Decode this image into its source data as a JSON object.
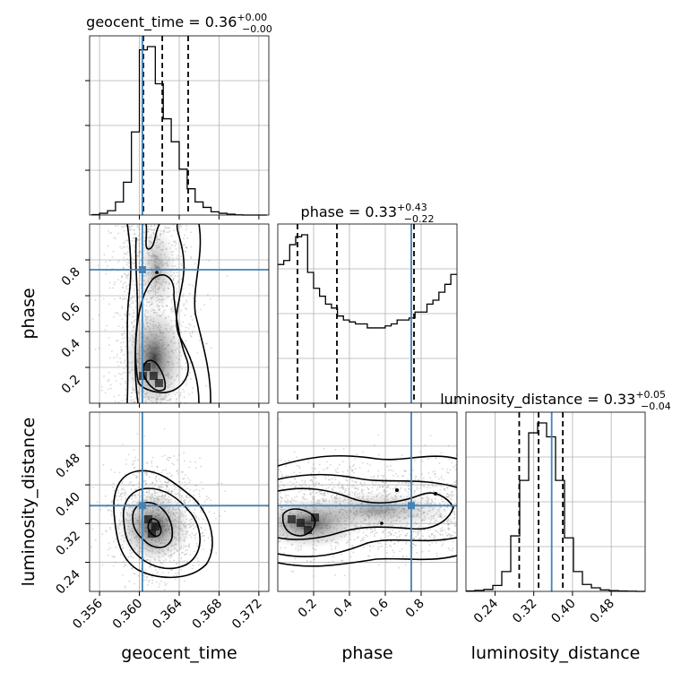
{
  "chart_data": {
    "type": "corner",
    "parameters": [
      {
        "key": "geocent_time",
        "label": "geocent_time",
        "range": [
          0.355,
          0.373
        ],
        "truth": 0.3603,
        "ticks": [
          "0.356",
          "0.360",
          "0.364",
          "0.368",
          "0.372"
        ],
        "tick_values": [
          0.356,
          0.36,
          0.364,
          0.368,
          0.372
        ]
      },
      {
        "key": "phase",
        "label": "phase",
        "range": [
          0.0,
          1.0
        ],
        "truth": 0.745,
        "ticks": [
          "0.2",
          "0.4",
          "0.6",
          "0.8"
        ],
        "tick_values": [
          0.2,
          0.4,
          0.6,
          0.8
        ]
      },
      {
        "key": "luminosity_distance",
        "label": "luminosity_distance",
        "range": [
          0.18,
          0.55
        ],
        "truth": 0.357,
        "ticks": [
          "0.24",
          "0.32",
          "0.40",
          "0.48"
        ],
        "tick_values": [
          0.24,
          0.32,
          0.4,
          0.48
        ]
      }
    ],
    "titles": [
      {
        "name": "geocent_time",
        "median": "0.36",
        "plus": "+0.00",
        "minus": "−0.00",
        "quantiles": [
          0.3604,
          0.3623,
          0.3649
        ]
      },
      {
        "name": "phase",
        "median": "0.33",
        "plus": "+0.43",
        "minus": "−0.22",
        "quantiles": [
          0.11,
          0.33,
          0.76
        ]
      },
      {
        "name": "luminosity_distance",
        "median": "0.33",
        "plus": "+0.05",
        "minus": "−0.04",
        "quantiles": [
          0.29,
          0.33,
          0.38
        ]
      }
    ],
    "histograms": {
      "geocent_time": {
        "bin_start": 0.3552,
        "bin_width": 0.0008,
        "counts": [
          2,
          8,
          20,
          60,
          150,
          380,
          755,
          770,
          600,
          440,
          335,
          210,
          120,
          60,
          35,
          15,
          8,
          4,
          1,
          0,
          0,
          0
        ]
      },
      "phase": {
        "bin_start": 0.0,
        "bin_width": 0.0333,
        "counts": [
          700,
          720,
          800,
          840,
          850,
          660,
          580,
          540,
          500,
          480,
          440,
          420,
          410,
          400,
          400,
          380,
          380,
          380,
          390,
          400,
          420,
          420,
          430,
          460,
          460,
          500,
          520,
          560,
          600,
          650
        ]
      },
      "luminosity_distance": {
        "bin_start": 0.18,
        "bin_width": 0.0185,
        "counts": [
          2,
          5,
          10,
          30,
          100,
          280,
          560,
          800,
          850,
          780,
          560,
          270,
          100,
          35,
          18,
          8,
          4,
          2,
          1,
          0
        ]
      }
    },
    "levels": [
      "39%",
      "86%",
      "99%"
    ],
    "grid": true
  }
}
